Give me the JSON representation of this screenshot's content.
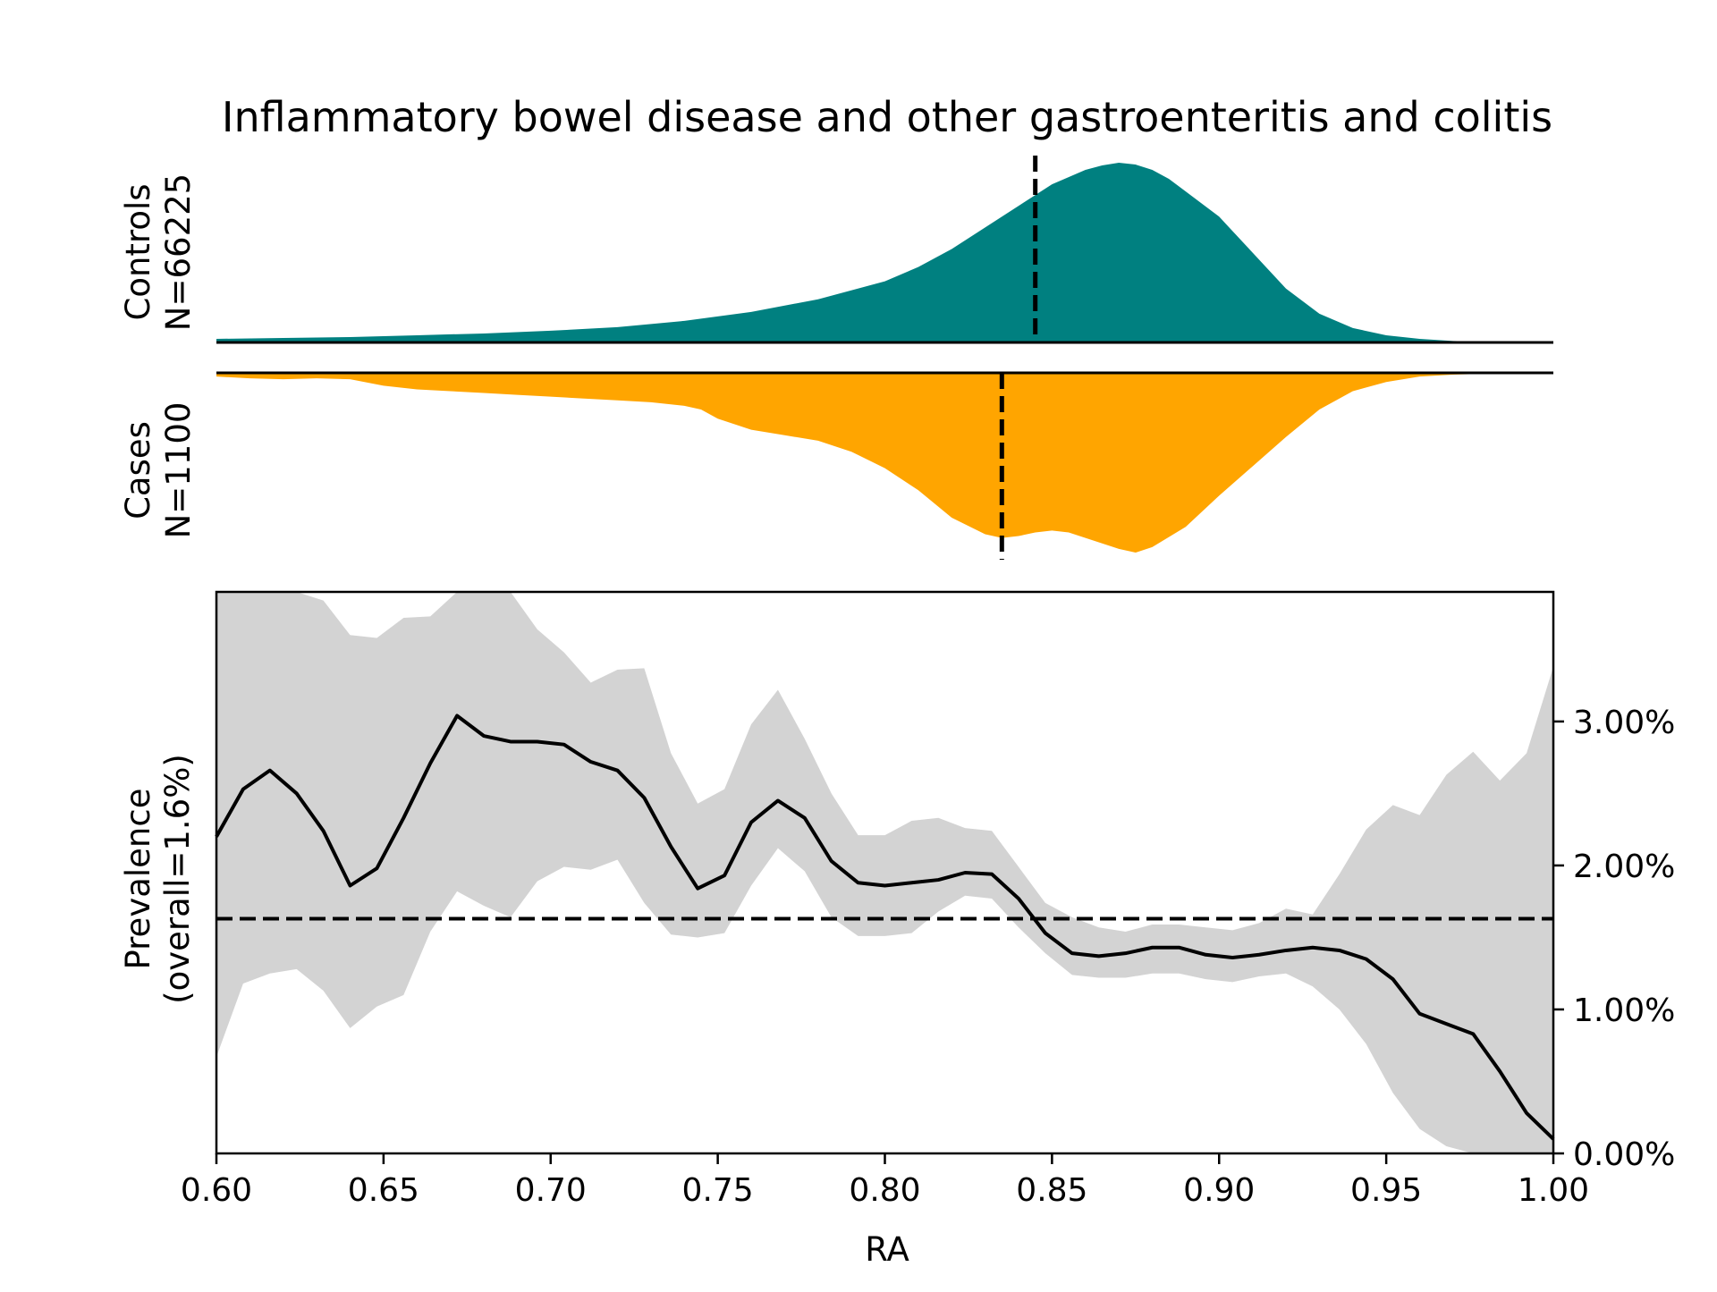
{
  "chart_data": {
    "type": "area",
    "title": "Inflammatory bowel disease and other gastroenteritis and colitis",
    "xlabel": "RA",
    "xlim": [
      0.6,
      1.0
    ],
    "x_ticks": [
      "0.60",
      "0.65",
      "0.70",
      "0.75",
      "0.80",
      "0.85",
      "0.90",
      "0.95",
      "1.00"
    ],
    "controls": {
      "label_line1": "Controls",
      "label_line2": "N=66225",
      "color": "#008080",
      "median": 0.845,
      "density": {
        "x": [
          0.6,
          0.62,
          0.64,
          0.66,
          0.68,
          0.7,
          0.72,
          0.74,
          0.76,
          0.78,
          0.8,
          0.81,
          0.82,
          0.83,
          0.84,
          0.85,
          0.86,
          0.865,
          0.87,
          0.875,
          0.88,
          0.885,
          0.89,
          0.9,
          0.91,
          0.92,
          0.93,
          0.94,
          0.95,
          0.96,
          0.97,
          0.98,
          0.99,
          1.0
        ],
        "y": [
          0.02,
          0.025,
          0.03,
          0.04,
          0.05,
          0.065,
          0.085,
          0.12,
          0.17,
          0.24,
          0.34,
          0.42,
          0.52,
          0.64,
          0.76,
          0.88,
          0.96,
          0.985,
          1.0,
          0.99,
          0.96,
          0.91,
          0.84,
          0.7,
          0.5,
          0.3,
          0.16,
          0.08,
          0.04,
          0.02,
          0.008,
          0.003,
          0.001,
          0.0
        ]
      }
    },
    "cases": {
      "label_line1": "Cases",
      "label_line2": "N=1100",
      "color": "#FFA500",
      "median": 0.835,
      "density": {
        "x": [
          0.6,
          0.61,
          0.62,
          0.63,
          0.64,
          0.65,
          0.66,
          0.67,
          0.68,
          0.69,
          0.7,
          0.71,
          0.72,
          0.73,
          0.74,
          0.745,
          0.75,
          0.76,
          0.77,
          0.78,
          0.79,
          0.8,
          0.81,
          0.82,
          0.83,
          0.835,
          0.84,
          0.845,
          0.85,
          0.855,
          0.86,
          0.87,
          0.875,
          0.88,
          0.89,
          0.9,
          0.91,
          0.92,
          0.93,
          0.94,
          0.95,
          0.96,
          0.97,
          0.98,
          0.99,
          1.0
        ],
        "y": [
          0.02,
          0.03,
          0.035,
          0.03,
          0.035,
          0.07,
          0.09,
          0.1,
          0.11,
          0.12,
          0.13,
          0.14,
          0.15,
          0.16,
          0.18,
          0.2,
          0.25,
          0.31,
          0.34,
          0.37,
          0.43,
          0.52,
          0.64,
          0.79,
          0.88,
          0.9,
          0.89,
          0.87,
          0.86,
          0.87,
          0.9,
          0.96,
          0.98,
          0.95,
          0.84,
          0.67,
          0.51,
          0.35,
          0.2,
          0.1,
          0.05,
          0.02,
          0.01,
          0.005,
          0.002,
          0.0
        ]
      }
    },
    "prevalence": {
      "ylabel_line1": "Prevalence",
      "ylabel_line2": "(overall=1.6%)",
      "overall": 1.63,
      "ylim": [
        0,
        3.9
      ],
      "y_ticks": [
        "0.00%",
        "1.00%",
        "2.00%",
        "3.00%"
      ],
      "line_color": "#000000",
      "band_color": "#D3D3D3",
      "x": [
        0.6,
        0.608,
        0.616,
        0.624,
        0.632,
        0.64,
        0.648,
        0.656,
        0.664,
        0.672,
        0.68,
        0.688,
        0.696,
        0.704,
        0.712,
        0.72,
        0.728,
        0.736,
        0.744,
        0.752,
        0.76,
        0.768,
        0.776,
        0.784,
        0.792,
        0.8,
        0.808,
        0.816,
        0.824,
        0.832,
        0.84,
        0.848,
        0.856,
        0.864,
        0.872,
        0.88,
        0.888,
        0.896,
        0.904,
        0.912,
        0.92,
        0.928,
        0.936,
        0.944,
        0.952,
        0.96,
        0.968,
        0.976,
        0.984,
        0.992,
        1.0
      ],
      "y": [
        2.2,
        2.53,
        2.66,
        2.5,
        2.24,
        1.86,
        1.98,
        2.33,
        2.71,
        3.04,
        2.9,
        2.86,
        2.86,
        2.84,
        2.72,
        2.66,
        2.47,
        2.13,
        1.84,
        1.93,
        2.3,
        2.45,
        2.33,
        2.03,
        1.88,
        1.86,
        1.88,
        1.9,
        1.95,
        1.94,
        1.77,
        1.53,
        1.39,
        1.37,
        1.39,
        1.43,
        1.43,
        1.38,
        1.36,
        1.38,
        1.41,
        1.43,
        1.41,
        1.35,
        1.21,
        0.97,
        0.9,
        0.83,
        0.57,
        0.28,
        0.1
      ],
      "lower": [
        0.67,
        1.18,
        1.25,
        1.28,
        1.13,
        0.87,
        1.02,
        1.1,
        1.54,
        1.82,
        1.72,
        1.64,
        1.89,
        1.99,
        1.97,
        2.04,
        1.74,
        1.52,
        1.5,
        1.53,
        1.86,
        2.12,
        1.96,
        1.64,
        1.51,
        1.51,
        1.53,
        1.68,
        1.79,
        1.77,
        1.57,
        1.39,
        1.24,
        1.22,
        1.22,
        1.25,
        1.25,
        1.21,
        1.19,
        1.23,
        1.25,
        1.16,
        1.0,
        0.76,
        0.42,
        0.17,
        0.05,
        0.0,
        0.0,
        0.0,
        0.0
      ],
      "upper": [
        3.9,
        3.9,
        3.9,
        3.9,
        3.84,
        3.6,
        3.58,
        3.72,
        3.73,
        3.9,
        3.9,
        3.9,
        3.64,
        3.48,
        3.27,
        3.36,
        3.37,
        2.78,
        2.43,
        2.53,
        2.98,
        3.22,
        2.88,
        2.5,
        2.21,
        2.21,
        2.31,
        2.33,
        2.26,
        2.24,
        1.99,
        1.74,
        1.64,
        1.57,
        1.54,
        1.59,
        1.59,
        1.57,
        1.55,
        1.6,
        1.7,
        1.66,
        1.94,
        2.25,
        2.42,
        2.35,
        2.63,
        2.79,
        2.59,
        2.78,
        3.38
      ]
    }
  }
}
